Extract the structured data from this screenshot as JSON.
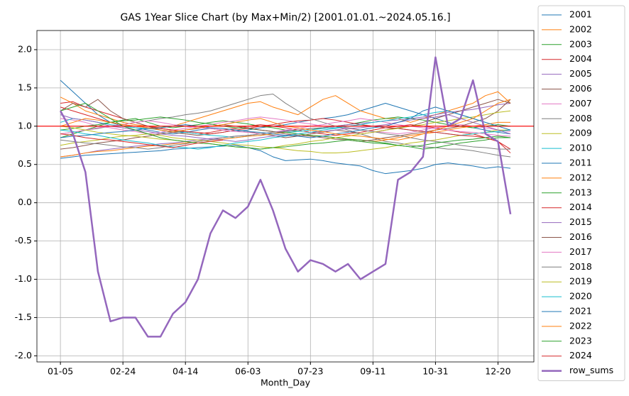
{
  "chart_data": {
    "type": "line",
    "title": "GAS 1Year Slice Chart (by Max+Min/2) [2001.01.01.~2024.05.16.]",
    "x_label": "Month_Day",
    "categories": [
      "01-05",
      null,
      null,
      null,
      null,
      "02-24",
      null,
      null,
      null,
      null,
      "04-14",
      null,
      null,
      null,
      null,
      "06-03",
      null,
      null,
      null,
      null,
      "07-23",
      null,
      null,
      null,
      null,
      "09-11",
      null,
      null,
      null,
      null,
      "10-31",
      null,
      null,
      null,
      null,
      "12-20",
      null
    ],
    "ylim": [
      -2.08,
      2.25
    ],
    "yticks": [
      {
        "value": -2,
        "label": "-2.0"
      },
      {
        "value": -1.5,
        "label": "-1.5"
      },
      {
        "value": -1,
        "label": "-1.0"
      },
      {
        "value": -0.5,
        "label": "-0.5"
      },
      {
        "value": 0,
        "label": "0.0"
      },
      {
        "value": 0.5,
        "label": "0.5"
      },
      {
        "value": 1,
        "label": "1.0"
      },
      {
        "value": 1.5,
        "label": "1.5"
      },
      {
        "value": 2,
        "label": "2.0"
      }
    ],
    "grid": true,
    "legend": "outside right",
    "hline": {
      "value": 1,
      "color": "#ff0000"
    },
    "series": [
      {
        "name": "2001",
        "color": "#1f77b4",
        "values": [
          1.6,
          1.45,
          1.3,
          1.15,
          1.05,
          1.0,
          0.98,
          0.95,
          0.92,
          0.9,
          0.92,
          0.95,
          0.97,
          0.95,
          0.93,
          0.95,
          0.98,
          1.0,
          1.02,
          1.05,
          1.08,
          1.1,
          1.12,
          1.15,
          1.2,
          1.25,
          1.3,
          1.25,
          1.2,
          1.15,
          1.1,
          1.05,
          1.0,
          0.98,
          0.95,
          0.92,
          0.9
        ]
      },
      {
        "name": "2002",
        "color": "#ff7f0e",
        "values": [
          1.38,
          1.3,
          1.2,
          1.15,
          1.1,
          1.05,
          1.02,
          1.0,
          0.98,
          1.0,
          1.05,
          1.1,
          1.15,
          1.2,
          1.25,
          1.3,
          1.32,
          1.25,
          1.2,
          1.15,
          1.25,
          1.35,
          1.4,
          1.3,
          1.2,
          1.15,
          1.1,
          1.1,
          1.05,
          1.1,
          1.15,
          1.2,
          1.25,
          1.3,
          1.4,
          1.45,
          1.3
        ]
      },
      {
        "name": "2003",
        "color": "#2ca02c",
        "values": [
          0.85,
          0.9,
          0.95,
          1.0,
          1.05,
          1.08,
          1.1,
          1.05,
          1.0,
          0.98,
          1.0,
          1.02,
          1.05,
          1.07,
          1.05,
          1.03,
          1.0,
          0.98,
          0.95,
          0.93,
          0.95,
          0.98,
          1.0,
          1.02,
          1.05,
          1.08,
          1.1,
          1.12,
          1.1,
          1.08,
          1.05,
          1.02,
          1.0,
          0.98,
          1.0,
          1.02,
          1.0
        ]
      },
      {
        "name": "2004",
        "color": "#d62728",
        "values": [
          1.3,
          1.32,
          1.25,
          1.2,
          1.15,
          1.1,
          1.05,
          1.0,
          0.97,
          0.95,
          0.92,
          0.9,
          0.92,
          0.95,
          0.97,
          1.0,
          1.02,
          1.0,
          0.98,
          0.95,
          0.92,
          0.9,
          0.88,
          0.9,
          0.92,
          0.95,
          0.98,
          1.0,
          1.02,
          1.0,
          0.98,
          0.95,
          0.92,
          0.9,
          0.85,
          0.8,
          0.7
        ]
      },
      {
        "name": "2005",
        "color": "#9467bd",
        "values": [
          0.6,
          0.62,
          0.65,
          0.68,
          0.7,
          0.72,
          0.74,
          0.75,
          0.77,
          0.78,
          0.8,
          0.82,
          0.84,
          0.85,
          0.87,
          0.88,
          0.9,
          0.92,
          0.94,
          0.95,
          0.97,
          0.98,
          1.0,
          1.02,
          1.04,
          1.05,
          1.07,
          1.08,
          1.1,
          1.12,
          1.15,
          1.18,
          1.2,
          1.22,
          1.25,
          1.28,
          1.3
        ]
      },
      {
        "name": "2006",
        "color": "#8c564b",
        "values": [
          1.2,
          1.3,
          1.25,
          1.35,
          1.2,
          1.1,
          1.05,
          1.0,
          0.95,
          0.92,
          0.9,
          0.88,
          0.9,
          0.92,
          0.95,
          0.93,
          0.9,
          0.88,
          0.85,
          0.87,
          0.9,
          0.92,
          0.95,
          0.93,
          0.9,
          0.92,
          0.95,
          0.98,
          1.0,
          1.05,
          1.1,
          1.15,
          1.2,
          1.25,
          1.3,
          1.35,
          1.3
        ]
      },
      {
        "name": "2007",
        "color": "#e377c2",
        "values": [
          1.1,
          1.08,
          1.05,
          1.0,
          0.98,
          0.95,
          0.93,
          0.9,
          0.92,
          0.95,
          0.97,
          1.0,
          1.02,
          1.05,
          1.07,
          1.1,
          1.12,
          1.1,
          1.08,
          1.05,
          1.03,
          1.0,
          0.98,
          0.97,
          0.95,
          0.93,
          0.92,
          0.9,
          0.92,
          0.95,
          0.98,
          1.0,
          1.02,
          1.0,
          0.98,
          0.95,
          0.93
        ]
      },
      {
        "name": "2008",
        "color": "#7f7f7f",
        "values": [
          0.9,
          0.92,
          0.95,
          0.97,
          1.0,
          1.02,
          1.05,
          1.07,
          1.1,
          1.12,
          1.15,
          1.17,
          1.2,
          1.25,
          1.3,
          1.35,
          1.4,
          1.42,
          1.3,
          1.2,
          1.1,
          1.05,
          1.0,
          0.95,
          0.9,
          0.85,
          0.8,
          0.78,
          0.75,
          0.73,
          0.72,
          0.7,
          0.7,
          0.68,
          0.65,
          0.62,
          0.6
        ]
      },
      {
        "name": "2009",
        "color": "#bcbd22",
        "values": [
          0.75,
          0.78,
          0.8,
          0.82,
          0.85,
          0.87,
          0.88,
          0.9,
          0.88,
          0.85,
          0.83,
          0.82,
          0.8,
          0.78,
          0.76,
          0.75,
          0.73,
          0.72,
          0.7,
          0.68,
          0.67,
          0.65,
          0.65,
          0.66,
          0.68,
          0.7,
          0.72,
          0.75,
          0.78,
          0.8,
          0.82,
          0.85,
          0.88,
          0.9,
          0.92,
          0.95,
          0.95
        ]
      },
      {
        "name": "2010",
        "color": "#17becf",
        "values": [
          1.05,
          1.1,
          1.08,
          1.05,
          1.02,
          1.0,
          0.98,
          0.97,
          0.95,
          0.93,
          0.92,
          0.9,
          0.88,
          0.87,
          0.85,
          0.87,
          0.88,
          0.9,
          0.92,
          0.93,
          0.95,
          0.97,
          0.98,
          1.0,
          1.02,
          1.0,
          0.98,
          0.97,
          0.95,
          0.93,
          0.92,
          0.9,
          0.88,
          0.9,
          0.92,
          0.93,
          0.95
        ]
      },
      {
        "name": "2011",
        "color": "#1f77b4",
        "values": [
          0.58,
          0.6,
          0.62,
          0.63,
          0.64,
          0.65,
          0.66,
          0.67,
          0.68,
          0.7,
          0.71,
          0.72,
          0.73,
          0.74,
          0.75,
          0.72,
          0.68,
          0.6,
          0.55,
          0.56,
          0.57,
          0.55,
          0.52,
          0.5,
          0.48,
          0.42,
          0.38,
          0.4,
          0.42,
          0.45,
          0.5,
          0.52,
          0.5,
          0.48,
          0.45,
          0.47,
          0.45
        ]
      },
      {
        "name": "2012",
        "color": "#ff7f0e",
        "values": [
          0.6,
          0.62,
          0.65,
          0.67,
          0.68,
          0.7,
          0.72,
          0.74,
          0.75,
          0.77,
          0.78,
          0.8,
          0.82,
          0.83,
          0.85,
          0.87,
          0.88,
          0.9,
          0.92,
          0.9,
          0.88,
          0.87,
          0.85,
          0.83,
          0.82,
          0.8,
          0.82,
          0.85,
          0.88,
          0.9,
          0.92,
          0.95,
          0.98,
          1.0,
          1.02,
          1.05,
          1.05
        ]
      },
      {
        "name": "2013",
        "color": "#2ca02c",
        "values": [
          0.95,
          0.97,
          1.0,
          1.02,
          1.05,
          1.07,
          1.08,
          1.1,
          1.12,
          1.1,
          1.08,
          1.05,
          1.03,
          1.0,
          0.98,
          0.97,
          0.95,
          0.93,
          0.92,
          0.9,
          0.88,
          0.87,
          0.85,
          0.83,
          0.82,
          0.8,
          0.78,
          0.75,
          0.73,
          0.7,
          0.72,
          0.75,
          0.78,
          0.8,
          0.82,
          0.85,
          0.85
        ]
      },
      {
        "name": "2014",
        "color": "#d62728",
        "values": [
          1.25,
          1.2,
          1.15,
          1.1,
          1.05,
          1.02,
          1.0,
          0.98,
          0.97,
          0.95,
          0.93,
          0.92,
          0.9,
          0.92,
          0.95,
          0.97,
          1.0,
          1.02,
          1.05,
          1.07,
          1.08,
          1.1,
          1.08,
          1.05,
          1.02,
          1.0,
          0.98,
          0.97,
          0.95,
          0.93,
          0.92,
          0.9,
          0.88,
          0.87,
          0.85,
          0.8,
          0.65
        ]
      },
      {
        "name": "2015",
        "color": "#9467bd",
        "values": [
          1.15,
          1.1,
          1.08,
          1.05,
          1.0,
          0.98,
          0.95,
          0.93,
          0.9,
          0.88,
          0.87,
          0.85,
          0.83,
          0.82,
          0.8,
          0.82,
          0.85,
          0.87,
          0.88,
          0.9,
          0.92,
          0.93,
          0.95,
          0.97,
          0.98,
          1.0,
          1.02,
          1.05,
          1.08,
          1.1,
          1.12,
          1.15,
          1.1,
          1.05,
          1.0,
          0.95,
          0.9
        ]
      },
      {
        "name": "2016",
        "color": "#8c564b",
        "values": [
          0.7,
          0.72,
          0.75,
          0.78,
          0.8,
          0.82,
          0.85,
          0.87,
          0.9,
          0.92,
          0.95,
          0.97,
          1.0,
          1.02,
          1.0,
          0.98,
          0.95,
          0.93,
          0.9,
          0.88,
          0.87,
          0.85,
          0.83,
          0.82,
          0.8,
          0.82,
          0.85,
          0.87,
          0.9,
          0.92,
          0.95,
          0.97,
          1.0,
          1.05,
          1.1,
          1.2,
          1.35
        ]
      },
      {
        "name": "2017",
        "color": "#e377c2",
        "values": [
          0.9,
          0.92,
          0.95,
          0.98,
          1.0,
          1.02,
          1.05,
          1.07,
          1.05,
          1.02,
          1.0,
          0.98,
          0.97,
          0.95,
          0.93,
          0.92,
          0.9,
          0.92,
          0.95,
          0.97,
          1.0,
          1.02,
          1.05,
          1.07,
          1.1,
          1.08,
          1.05,
          1.02,
          1.0,
          0.98,
          0.97,
          0.95,
          0.93,
          0.92,
          0.9,
          0.88,
          0.87
        ]
      },
      {
        "name": "2018",
        "color": "#7f7f7f",
        "values": [
          0.82,
          0.8,
          0.78,
          0.77,
          0.75,
          0.73,
          0.72,
          0.7,
          0.72,
          0.75,
          0.77,
          0.8,
          0.82,
          0.85,
          0.87,
          0.88,
          0.9,
          0.92,
          0.93,
          0.95,
          0.97,
          0.98,
          1.0,
          0.98,
          0.95,
          0.93,
          0.9,
          0.88,
          0.85,
          0.82,
          0.8,
          0.78,
          0.75,
          0.73,
          0.72,
          0.7,
          0.7
        ]
      },
      {
        "name": "2019",
        "color": "#bcbd22",
        "values": [
          1.0,
          0.98,
          0.95,
          0.92,
          0.9,
          0.88,
          0.87,
          0.85,
          0.83,
          0.82,
          0.8,
          0.78,
          0.77,
          0.75,
          0.73,
          0.72,
          0.7,
          0.72,
          0.75,
          0.77,
          0.8,
          0.82,
          0.85,
          0.87,
          0.9,
          0.92,
          0.95,
          0.97,
          1.0,
          1.02,
          1.05,
          1.07,
          1.1,
          1.12,
          1.15,
          1.18,
          1.2
        ]
      },
      {
        "name": "2020",
        "color": "#17becf",
        "values": [
          0.95,
          0.93,
          0.9,
          0.88,
          0.85,
          0.82,
          0.8,
          0.78,
          0.75,
          0.73,
          0.72,
          0.7,
          0.72,
          0.75,
          0.78,
          0.8,
          0.82,
          0.85,
          0.87,
          0.9,
          0.92,
          0.95,
          0.97,
          1.0,
          1.02,
          1.05,
          1.07,
          1.1,
          1.12,
          1.15,
          1.18,
          1.2,
          1.15,
          1.1,
          1.05,
          1.0,
          1.0
        ]
      },
      {
        "name": "2021",
        "color": "#1f77b4",
        "values": [
          0.85,
          0.87,
          0.88,
          0.9,
          0.92,
          0.93,
          0.95,
          0.97,
          0.98,
          1.0,
          1.02,
          1.0,
          0.98,
          0.97,
          0.95,
          0.93,
          0.92,
          0.9,
          0.88,
          0.87,
          0.85,
          0.87,
          0.9,
          0.92,
          0.95,
          0.98,
          1.0,
          1.05,
          1.1,
          1.2,
          1.25,
          1.2,
          1.15,
          1.1,
          1.05,
          1.0,
          0.95
        ]
      },
      {
        "name": "2022",
        "color": "#ff7f0e",
        "values": [
          1.0,
          1.05,
          1.1,
          1.08,
          1.05,
          1.02,
          1.0,
          0.98,
          0.95,
          0.93,
          0.95,
          0.98,
          1.0,
          1.02,
          1.05,
          1.08,
          1.1,
          1.05,
          1.0,
          0.98,
          0.95,
          0.93,
          0.9,
          0.88,
          0.87,
          0.85,
          0.83,
          0.82,
          0.85,
          0.9,
          0.95,
          1.0,
          1.05,
          1.1,
          1.2,
          1.3,
          1.35
        ]
      },
      {
        "name": "2023",
        "color": "#2ca02c",
        "values": [
          1.2,
          1.25,
          1.3,
          1.2,
          1.1,
          1.0,
          0.95,
          0.9,
          0.85,
          0.82,
          0.8,
          0.78,
          0.77,
          0.75,
          0.73,
          0.72,
          0.7,
          0.72,
          0.73,
          0.75,
          0.77,
          0.78,
          0.8,
          0.82,
          0.8,
          0.78,
          0.77,
          0.75,
          0.73,
          0.75,
          0.78,
          0.8,
          0.82,
          0.83,
          0.85,
          0.87,
          0.85
        ]
      },
      {
        "name": "2024",
        "color": "#d62728",
        "values": [
          0.9,
          0.88,
          0.85,
          0.83,
          0.82,
          0.8,
          0.78,
          0.76,
          0.74,
          0.72,
          0.75,
          0.78,
          0.8,
          0.82,
          null,
          null,
          null,
          null,
          null,
          null,
          null,
          null,
          null,
          null,
          null,
          null,
          null,
          null,
          null,
          null,
          null,
          null,
          null,
          null,
          null,
          null,
          null
        ]
      },
      {
        "name": "row_sums",
        "color": "#9467bd",
        "width": 2.5,
        "values": [
          1.2,
          0.9,
          0.4,
          -0.9,
          -1.55,
          -1.5,
          -1.5,
          -1.75,
          -1.75,
          -1.45,
          -1.3,
          -1.0,
          -0.4,
          -0.1,
          -0.2,
          -0.05,
          0.3,
          -0.1,
          -0.6,
          -0.9,
          -0.75,
          -0.8,
          -0.9,
          -0.8,
          -1.0,
          -0.9,
          -0.8,
          0.3,
          0.4,
          0.6,
          1.9,
          1.0,
          1.1,
          1.6,
          0.9,
          0.8,
          -0.15
        ]
      }
    ]
  }
}
